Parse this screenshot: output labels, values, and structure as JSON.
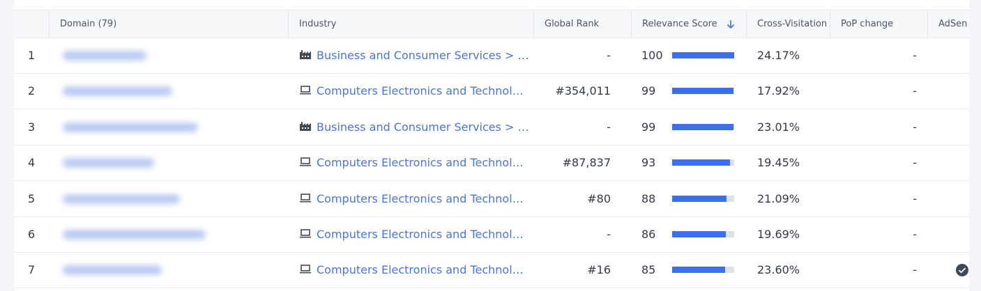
{
  "table": {
    "headers": [
      "Domain (79)",
      "Industry",
      "Global Rank",
      "Relevance Score",
      "Cross-Visitation",
      "PoP change",
      "AdSen"
    ],
    "rows": [
      {
        "index": "1",
        "icon": "factory",
        "industry": "Business and Consumer Services > …",
        "global_rank": "-",
        "relevance": 100,
        "cross_visitation": "24.17%",
        "pop_change": "-",
        "adsense": false
      },
      {
        "index": "2",
        "icon": "laptop",
        "industry": "Computers Electronics and Technol…",
        "global_rank": "#354,011",
        "relevance": 99,
        "cross_visitation": "17.92%",
        "pop_change": "-",
        "adsense": false
      },
      {
        "index": "3",
        "icon": "factory",
        "industry": "Business and Consumer Services > …",
        "global_rank": "-",
        "relevance": 99,
        "cross_visitation": "23.01%",
        "pop_change": "-",
        "adsense": false
      },
      {
        "index": "4",
        "icon": "laptop",
        "industry": "Computers Electronics and Technol…",
        "global_rank": "#87,837",
        "relevance": 93,
        "cross_visitation": "19.45%",
        "pop_change": "-",
        "adsense": false
      },
      {
        "index": "5",
        "icon": "laptop",
        "industry": "Computers Electronics and Technol…",
        "global_rank": "#80",
        "relevance": 88,
        "cross_visitation": "21.09%",
        "pop_change": "-",
        "adsense": false
      },
      {
        "index": "6",
        "icon": "laptop",
        "industry": "Computers Electronics and Technol…",
        "global_rank": "-",
        "relevance": 86,
        "cross_visitation": "19.69%",
        "pop_change": "-",
        "adsense": false
      },
      {
        "index": "7",
        "icon": "laptop",
        "industry": "Computers Electronics and Technol…",
        "global_rank": "#16",
        "relevance": 85,
        "cross_visitation": "23.60%",
        "pop_change": "-",
        "adsense": true
      }
    ],
    "relevance_max": 100
  }
}
